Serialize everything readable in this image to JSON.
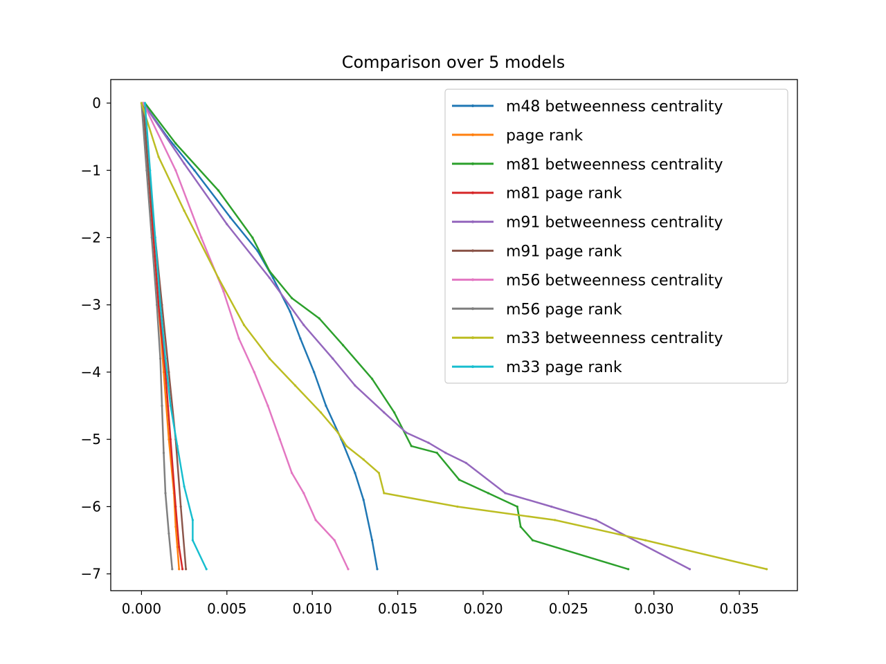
{
  "chart_data": {
    "type": "line",
    "title": "Comparison over 5 models",
    "xlabel": "",
    "ylabel": "",
    "xlim": [
      -0.0018,
      0.0384
    ],
    "ylim": [
      -7.25,
      0.35
    ],
    "x_ticks": [
      0.0,
      0.005,
      0.01,
      0.015,
      0.02,
      0.025,
      0.03,
      0.035
    ],
    "x_tick_labels": [
      "0.000",
      "0.005",
      "0.010",
      "0.015",
      "0.020",
      "0.025",
      "0.030",
      "0.035"
    ],
    "y_ticks": [
      0,
      -1,
      -2,
      -3,
      -4,
      -5,
      -6,
      -7
    ],
    "y_tick_labels": [
      "0",
      "−1",
      "−2",
      "−3",
      "−4",
      "−5",
      "−6",
      "−7"
    ],
    "grid": false,
    "legend_position": "top-right",
    "series": [
      {
        "name": "m48 betweenness centrality",
        "color": "#1f77b4",
        "x": [
          0.0001,
          0.0015,
          0.0031,
          0.0052,
          0.0068,
          0.0077,
          0.0087,
          0.0093,
          0.0101,
          0.0108,
          0.0117,
          0.0125,
          0.013,
          0.0135,
          0.0138
        ],
        "y": [
          0,
          -0.5,
          -1.0,
          -1.7,
          -2.2,
          -2.6,
          -3.1,
          -3.5,
          -4.0,
          -4.5,
          -5.0,
          -5.5,
          -5.9,
          -6.5,
          -6.93
        ]
      },
      {
        "name": "page rank",
        "color": "#ff7f0e",
        "x": [
          0.0001,
          0.0004,
          0.0007,
          0.001,
          0.0013,
          0.0016,
          0.0019,
          0.002,
          0.0021,
          0.0022
        ],
        "y": [
          0,
          -1.0,
          -2.0,
          -3.0,
          -4.0,
          -5.0,
          -5.8,
          -6.3,
          -6.6,
          -6.93
        ]
      },
      {
        "name": "m81 betweenness centrality",
        "color": "#2ca02c",
        "x": [
          0.0002,
          0.002,
          0.0045,
          0.0065,
          0.0075,
          0.0088,
          0.0104,
          0.0118,
          0.0135,
          0.0148,
          0.0158,
          0.0173,
          0.0186,
          0.0203,
          0.022,
          0.0222,
          0.0229,
          0.0285
        ],
        "y": [
          0,
          -0.6,
          -1.3,
          -2.0,
          -2.5,
          -2.9,
          -3.2,
          -3.6,
          -4.1,
          -4.6,
          -5.1,
          -5.2,
          -5.6,
          -5.8,
          -6.0,
          -6.3,
          -6.5,
          -6.93
        ]
      },
      {
        "name": "m81 page rank",
        "color": "#d62728",
        "x": [
          0.0001,
          0.0004,
          0.0007,
          0.001,
          0.0014,
          0.0017,
          0.002,
          0.0022,
          0.0024
        ],
        "y": [
          0,
          -1.0,
          -2.0,
          -3.0,
          -4.0,
          -5.0,
          -6.0,
          -6.6,
          -6.93
        ]
      },
      {
        "name": "m91 betweenness centrality",
        "color": "#9467bd",
        "x": [
          0.0001,
          0.0025,
          0.005,
          0.0075,
          0.0095,
          0.0112,
          0.0125,
          0.0142,
          0.0155,
          0.0168,
          0.0178,
          0.019,
          0.0213,
          0.024,
          0.0266,
          0.0321
        ],
        "y": [
          0,
          -0.9,
          -1.8,
          -2.6,
          -3.3,
          -3.8,
          -4.2,
          -4.6,
          -4.9,
          -5.05,
          -5.2,
          -5.35,
          -5.8,
          -6.0,
          -6.2,
          -6.93
        ]
      },
      {
        "name": "m91 page rank",
        "color": "#8c564b",
        "x": [
          0.0001,
          0.0004,
          0.0008,
          0.0012,
          0.0016,
          0.002,
          0.0023,
          0.0026
        ],
        "y": [
          0,
          -1.0,
          -2.0,
          -3.0,
          -4.0,
          -5.0,
          -6.0,
          -6.93
        ]
      },
      {
        "name": "m56 betweenness centrality",
        "color": "#e377c2",
        "x": [
          0.0001,
          0.002,
          0.0035,
          0.0048,
          0.0057,
          0.0066,
          0.0074,
          0.0081,
          0.0088,
          0.0095,
          0.0102,
          0.0113,
          0.0121
        ],
        "y": [
          0,
          -1.0,
          -2.0,
          -2.8,
          -3.5,
          -4.0,
          -4.5,
          -5.0,
          -5.5,
          -5.8,
          -6.2,
          -6.5,
          -6.93
        ]
      },
      {
        "name": "m56 page rank",
        "color": "#7f7f7f",
        "x": [
          0.0,
          0.0003,
          0.0006,
          0.0009,
          0.0011,
          0.0012,
          0.0013,
          0.0014,
          0.0016,
          0.0018
        ],
        "y": [
          0,
          -1.0,
          -2.0,
          -3.0,
          -3.8,
          -4.5,
          -5.2,
          -5.8,
          -6.4,
          -6.93
        ]
      },
      {
        "name": "m33 betweenness centrality",
        "color": "#bcbd22",
        "x": [
          0.0,
          0.001,
          0.0025,
          0.0045,
          0.006,
          0.0075,
          0.009,
          0.0105,
          0.0115,
          0.012,
          0.013,
          0.0139,
          0.0142,
          0.0185,
          0.0242,
          0.0295,
          0.0366
        ],
        "y": [
          0,
          -0.8,
          -1.6,
          -2.6,
          -3.3,
          -3.8,
          -4.2,
          -4.6,
          -4.9,
          -5.1,
          -5.3,
          -5.5,
          -5.8,
          -6.0,
          -6.2,
          -6.5,
          -6.93
        ]
      },
      {
        "name": "m33 page rank",
        "color": "#17becf",
        "x": [
          0.0002,
          0.0005,
          0.0008,
          0.0011,
          0.0014,
          0.0017,
          0.0021,
          0.0025,
          0.003,
          0.003,
          0.0038
        ],
        "y": [
          0,
          -1.0,
          -2.0,
          -3.0,
          -3.8,
          -4.5,
          -5.1,
          -5.7,
          -6.2,
          -6.5,
          -6.93
        ]
      }
    ]
  }
}
